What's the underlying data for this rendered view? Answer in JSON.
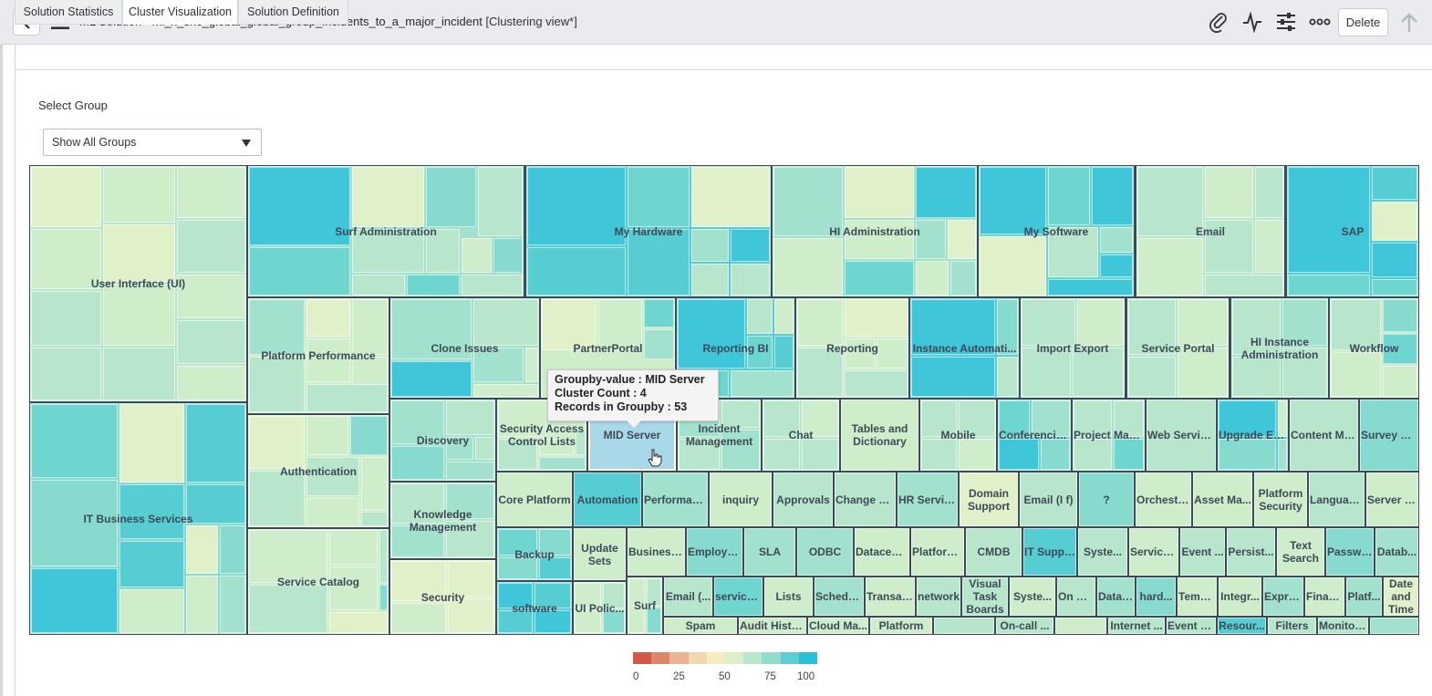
{
  "header": {
    "title_main": "ML Solution - ml_x_snc_global_global_group_incidents_to_a_major_incident",
    "title_view": " [Clustering view*]",
    "delete_label": "Delete",
    "icons": [
      "chevron-left-icon",
      "hamburger-menu-icon",
      "paperclip-icon",
      "activity-icon",
      "sliders-icon",
      "more-icon",
      "arrow-up-icon"
    ]
  },
  "tabs": [
    {
      "label": "Solution Statistics",
      "active": false
    },
    {
      "label": "Cluster Visualization",
      "active": true
    },
    {
      "label": "Solution Definition",
      "active": false
    }
  ],
  "filter": {
    "label": "Select Group",
    "selected": "Show All Groups"
  },
  "tooltip": {
    "line1": "Groupby-value : MID Server",
    "line2": "Cluster Count : 4",
    "line3": "Records in Groupby : 53"
  },
  "legend": {
    "ticks": [
      "0",
      "25",
      "50",
      "75",
      "100"
    ],
    "colors": [
      "#d05a46",
      "#df8668",
      "#ebb393",
      "#f1d8b0",
      "#f5ecc3",
      "#dcefc8",
      "#b9e6cd",
      "#8fdccd",
      "#5dcfd2",
      "#27c2d6"
    ]
  },
  "treemap_groups": [
    "User Interface (UI)",
    "Surf Administration",
    "My Hardware",
    "HI Administration",
    "My Software",
    "Email",
    "SAP",
    "Platform Performance",
    "Clone Issues",
    "PartnerPortal",
    "Reporting BI",
    "Reporting",
    "Instance Automati...",
    "Import Export",
    "Service Portal",
    "HI Instance Administration",
    "Workflow",
    "IT Business Services",
    "Authentication",
    "Discovery",
    "Security Access Control Lists",
    "MID Server",
    "Incident Management",
    "Chat",
    "Tables and Dictionary",
    "Mobile",
    "Conferencin...",
    "Project Man...",
    "Web Services",
    "Upgrade En...",
    "Content Ma...",
    "Survey M...",
    "Knowledge Management",
    "Core Platform",
    "Automation",
    "Performan...",
    "inquiry",
    "Approvals",
    "Change M...",
    "HR Servic...",
    "Domain Support",
    "Email (I f)",
    "?",
    "Orchestr...",
    "Asset Ma...",
    "Platform Security",
    "Languag...",
    "Server S...",
    "Service Catalog",
    "Backup",
    "Update Sets",
    "Business ...",
    "Employe...",
    "SLA",
    "ODBC",
    "Datacent...",
    "Platform...",
    "CMDB",
    "IT Suppl...",
    "Syste...",
    "Service ...",
    "Event ...",
    "Persist...",
    "Text Search",
    "Passwo...",
    "Datab...",
    "Security",
    "software",
    "UI Polic...",
    "Surf",
    "Email (...",
    "service...",
    "Lists",
    "Schedul...",
    "Transac...",
    "network",
    "Visual Task Boards",
    "Syste...",
    "On Pr...",
    "Datab...",
    "hard...",
    "Temp...",
    "Integr...",
    "Expre...",
    "Finan...",
    "Platf...",
    "Date and Time",
    "Spam",
    "Audit Histo...",
    "Cloud Ma...",
    "Platform",
    "On-call ...",
    "Internet ...",
    "Event P...",
    "Resour...",
    "Filters",
    "Monitor..."
  ]
}
